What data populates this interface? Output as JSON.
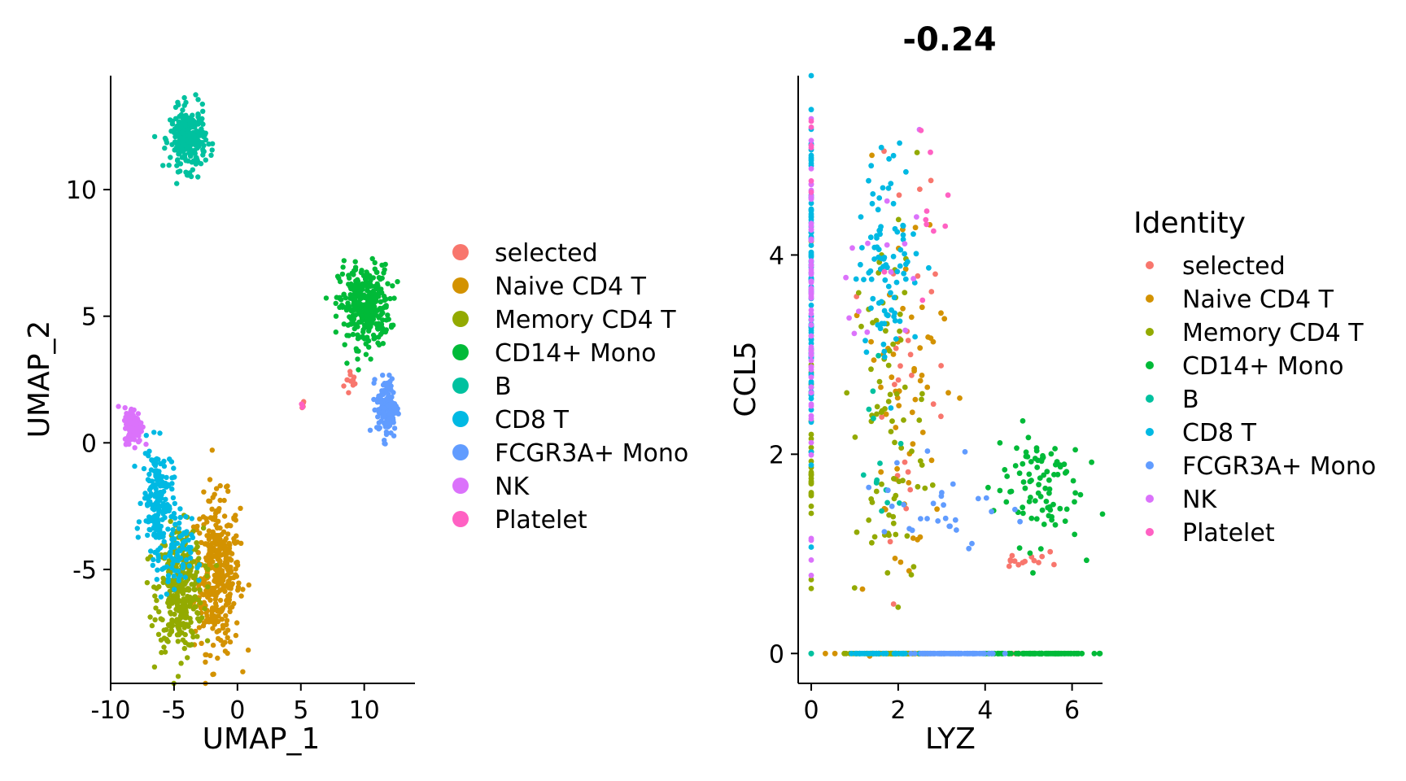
{
  "chart_data": [
    {
      "type": "scatter",
      "title": "",
      "xlabel": "UMAP_1",
      "ylabel": "UMAP_2",
      "xlim": [
        -10,
        14
      ],
      "ylim": [
        -9.5,
        14.5
      ],
      "xticks": [
        -10,
        -5,
        0,
        5,
        10
      ],
      "xtick_labels": [
        "-10",
        "-5",
        "0",
        "5",
        "10"
      ],
      "yticks": [
        -5,
        0,
        5,
        10
      ],
      "ytick_labels": [
        "-5",
        "0",
        "5",
        "10"
      ],
      "grid": false,
      "legend_position": "right",
      "legend_title": "",
      "series": [
        {
          "name": "selected",
          "color": "#F8766D",
          "clusters": [
            {
              "cx": 9.0,
              "cy": 2.4,
              "sx": 0.3,
              "sy": 0.3,
              "n": 12
            },
            {
              "cx": 5.1,
              "cy": 1.5,
              "sx": 0.1,
              "sy": 0.1,
              "n": 5
            }
          ]
        },
        {
          "name": "Naive CD4 T",
          "color": "#D39200",
          "clusters": [
            {
              "cx": -1.6,
              "cy": -5.2,
              "sx": 0.9,
              "sy": 1.5,
              "n": 380
            }
          ]
        },
        {
          "name": "Memory CD4 T",
          "color": "#93AA00",
          "clusters": [
            {
              "cx": -4.5,
              "cy": -5.8,
              "sx": 0.9,
              "sy": 1.2,
              "n": 330
            }
          ]
        },
        {
          "name": "CD14+ Mono",
          "color": "#00BA38",
          "clusters": [
            {
              "cx": 10.0,
              "cy": 5.4,
              "sx": 1.0,
              "sy": 0.8,
              "n": 330
            }
          ]
        },
        {
          "name": "B",
          "color": "#00C19F",
          "clusters": [
            {
              "cx": -3.9,
              "cy": 12.0,
              "sx": 0.7,
              "sy": 0.6,
              "n": 260
            }
          ]
        },
        {
          "name": "CD8 T",
          "color": "#00B9E3",
          "clusters": [
            {
              "cx": -6.3,
              "cy": -2.2,
              "sx": 0.6,
              "sy": 1.0,
              "n": 170
            },
            {
              "cx": -5.0,
              "cy": -4.6,
              "sx": 0.7,
              "sy": 0.8,
              "n": 80
            }
          ]
        },
        {
          "name": "FCGR3A+ Mono",
          "color": "#619CFF",
          "clusters": [
            {
              "cx": 11.8,
              "cy": 1.4,
              "sx": 0.4,
              "sy": 0.6,
              "n": 140
            }
          ]
        },
        {
          "name": "NK",
          "color": "#DB72FB",
          "clusters": [
            {
              "cx": -8.2,
              "cy": 0.7,
              "sx": 0.35,
              "sy": 0.35,
              "n": 140
            }
          ]
        },
        {
          "name": "Platelet",
          "color": "#FF61C3",
          "clusters": [
            {
              "cx": 5.1,
              "cy": 1.5,
              "sx": 0.05,
              "sy": 0.05,
              "n": 3
            }
          ]
        }
      ]
    },
    {
      "type": "scatter",
      "title": "-0.24",
      "xlabel": "LYZ",
      "ylabel": "CCL5",
      "xlim": [
        -0.3,
        6.7
      ],
      "ylim": [
        -0.3,
        5.8
      ],
      "xticks": [
        0,
        2,
        4,
        6
      ],
      "xtick_labels": [
        "0",
        "2",
        "4",
        "6"
      ],
      "yticks": [
        0,
        2,
        4
      ],
      "ytick_labels": [
        "0",
        "2",
        "4"
      ],
      "grid": false,
      "legend_position": "right",
      "legend_title": "Identity",
      "series": [
        {
          "name": "selected",
          "color": "#F8766D",
          "clusters": [
            {
              "cx": 4.9,
              "cy": 0.95,
              "sx": 0.25,
              "sy": 0.07,
              "n": 14
            },
            {
              "cx": 4.8,
              "cy": 0.0,
              "sx": 0.2,
              "sy": 0.0,
              "n": 10
            },
            {
              "cx": 2.2,
              "cy": 3.2,
              "sx": 0.5,
              "sy": 1.0,
              "n": 30
            }
          ]
        },
        {
          "name": "Naive CD4 T",
          "color": "#D39200",
          "clusters": [
            {
              "cx": 2.1,
              "cy": 2.6,
              "sx": 0.5,
              "sy": 1.1,
              "n": 60
            },
            {
              "cx": 2.0,
              "cy": 0.0,
              "sx": 0.6,
              "sy": 0.0,
              "n": 50
            }
          ]
        },
        {
          "name": "Memory CD4 T",
          "color": "#93AA00",
          "clusters": [
            {
              "cx": 1.8,
              "cy": 2.3,
              "sx": 0.4,
              "sy": 1.0,
              "n": 80
            },
            {
              "cx": 0.0,
              "cy": 2.0,
              "sx": 0.0,
              "sy": 0.6,
              "n": 30
            },
            {
              "cx": 1.8,
              "cy": 0.0,
              "sx": 0.5,
              "sy": 0.0,
              "n": 50
            }
          ]
        },
        {
          "name": "CD14+ Mono",
          "color": "#00BA38",
          "clusters": [
            {
              "cx": 5.2,
              "cy": 1.7,
              "sx": 0.5,
              "sy": 0.3,
              "n": 90
            },
            {
              "cx": 5.2,
              "cy": 0.0,
              "sx": 0.6,
              "sy": 0.0,
              "n": 120
            }
          ]
        },
        {
          "name": "B",
          "color": "#00C19F",
          "clusters": [
            {
              "cx": 1.6,
              "cy": 1.9,
              "sx": 0.3,
              "sy": 0.5,
              "n": 14
            },
            {
              "cx": 0.0,
              "cy": 0.0,
              "sx": 0.0,
              "sy": 0.0,
              "n": 3
            }
          ]
        },
        {
          "name": "CD8 T",
          "color": "#00B9E3",
          "clusters": [
            {
              "cx": 1.8,
              "cy": 4.0,
              "sx": 0.35,
              "sy": 0.5,
              "n": 90
            },
            {
              "cx": 0.0,
              "cy": 3.8,
              "sx": 0.0,
              "sy": 0.9,
              "n": 90
            },
            {
              "cx": 1.5,
              "cy": 0.0,
              "sx": 0.4,
              "sy": 0.0,
              "n": 40
            }
          ]
        },
        {
          "name": "FCGR3A+ Mono",
          "color": "#619CFF",
          "clusters": [
            {
              "cx": 3.0,
              "cy": 1.5,
              "sx": 0.7,
              "sy": 0.3,
              "n": 30
            },
            {
              "cx": 3.3,
              "cy": 0.0,
              "sx": 0.5,
              "sy": 0.0,
              "n": 80
            }
          ]
        },
        {
          "name": "NK",
          "color": "#DB72FB",
          "clusters": [
            {
              "cx": 0.0,
              "cy": 3.5,
              "sx": 0.0,
              "sy": 1.0,
              "n": 60
            },
            {
              "cx": 2.0,
              "cy": 3.9,
              "sx": 0.6,
              "sy": 0.5,
              "n": 15
            }
          ]
        },
        {
          "name": "Platelet",
          "color": "#FF61C3",
          "clusters": [
            {
              "cx": 0.0,
              "cy": 5.0,
              "sx": 0.0,
              "sy": 0.3,
              "n": 6
            },
            {
              "cx": 2.7,
              "cy": 4.2,
              "sx": 0.5,
              "sy": 0.4,
              "n": 10
            }
          ]
        }
      ]
    }
  ]
}
